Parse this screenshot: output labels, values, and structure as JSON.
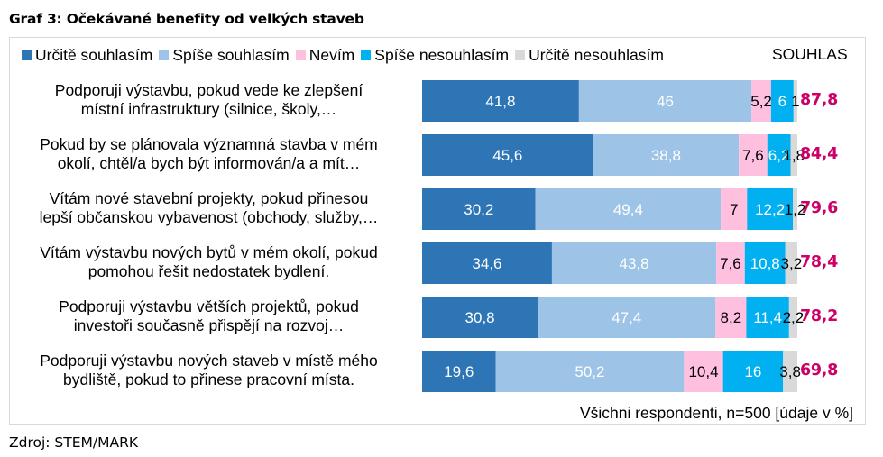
{
  "chart_data": {
    "type": "bar",
    "orientation": "horizontal",
    "stacked": true,
    "title": "Graf 3: Očekávané benefity od velkých staveb",
    "xlabel": "",
    "ylabel": "",
    "xlim": [
      0,
      100
    ],
    "grid": false,
    "legend_position": "top",
    "categories": [
      "Podporuji výstavbu, pokud vede ke zlepšení místní infrastruktury (silnice, školy,…",
      "Pokud by se plánovala významná stavba v mém okolí, chtěl/a bych být informován/a a mít…",
      "Vítám nové stavební projekty, pokud přinesou lepší občanskou vybavenost (obchody, služby,…",
      "Vítám výstavbu nových bytů v mém okolí, pokud pomohou řešit nedostatek bydlení.",
      "Podporuji výstavbu větších projektů, pokud investoři současně přispějí na rozvoj…",
      "Podporuji výstavbu nových staveb v místě mého bydliště, pokud to přinese pracovní místa."
    ],
    "category_lines": [
      [
        "Podporuji výstavbu, pokud vede ke zlepšení",
        "místní infrastruktury (silnice, školy,…"
      ],
      [
        "Pokud by se plánovala významná stavba v mém",
        "okolí, chtěl/a bych být informován/a a mít…"
      ],
      [
        "Vítám nové stavební projekty, pokud přinesou",
        "lepší občanskou vybavenost (obchody, služby,…"
      ],
      [
        "Vítám výstavbu nových bytů v mém okolí, pokud",
        "pomohou řešit nedostatek bydlení."
      ],
      [
        "Podporuji výstavbu větších projektů, pokud",
        "investoři současně přispějí na rozvoj…"
      ],
      [
        "Podporuji výstavbu nových staveb v místě mého",
        "bydliště, pokud to přinese pracovní místa."
      ]
    ],
    "series": [
      {
        "name": "Určitě souhlasím",
        "color": "#2e75b6",
        "label_color": "#ffffff",
        "values": [
          41.8,
          45.6,
          30.2,
          34.6,
          30.8,
          19.6
        ],
        "labels": [
          "41,8",
          "45,6",
          "30,2",
          "34,6",
          "30,8",
          "19,6"
        ]
      },
      {
        "name": "Spíše souhlasím",
        "color": "#9dc3e6",
        "label_color": "#ffffff",
        "values": [
          46,
          38.8,
          49.4,
          43.8,
          47.4,
          50.2
        ],
        "labels": [
          "46",
          "38,8",
          "49,4",
          "43,8",
          "47,4",
          "50,2"
        ]
      },
      {
        "name": "Nevím",
        "color": "#ffc0e0",
        "label_color": "#000000",
        "values": [
          5.2,
          7.6,
          7,
          7.6,
          8.2,
          10.4
        ],
        "labels": [
          "5,2",
          "7,6",
          "7",
          "7,6",
          "8,2",
          "10,4"
        ]
      },
      {
        "name": "Spíše nesouhlasím",
        "color": "#00b0f0",
        "label_color": "#ffffff",
        "values": [
          6,
          6.2,
          12.2,
          10.8,
          11.4,
          16
        ],
        "labels": [
          "6",
          "6,2",
          "12,2",
          "10,8",
          "11,4",
          "16"
        ]
      },
      {
        "name": "Určitě nesouhlasím",
        "color": "#d9d9d9",
        "label_color": "#000000",
        "values": [
          1,
          1.8,
          1.2,
          3.2,
          2.2,
          3.8
        ],
        "labels": [
          "1",
          "1,8",
          "1,2",
          "3,2",
          "2,2",
          "3,8"
        ]
      }
    ],
    "totals_header": "SOUHLAS",
    "totals": [
      "87,8",
      "84,4",
      "79,6",
      "78,4",
      "78,2",
      "69,8"
    ],
    "totals_color": "#cc0066",
    "annotations": [
      "Všichni respondenti, n=500 [údaje v %]"
    ]
  },
  "source": "Zdroj: STEM/MARK"
}
